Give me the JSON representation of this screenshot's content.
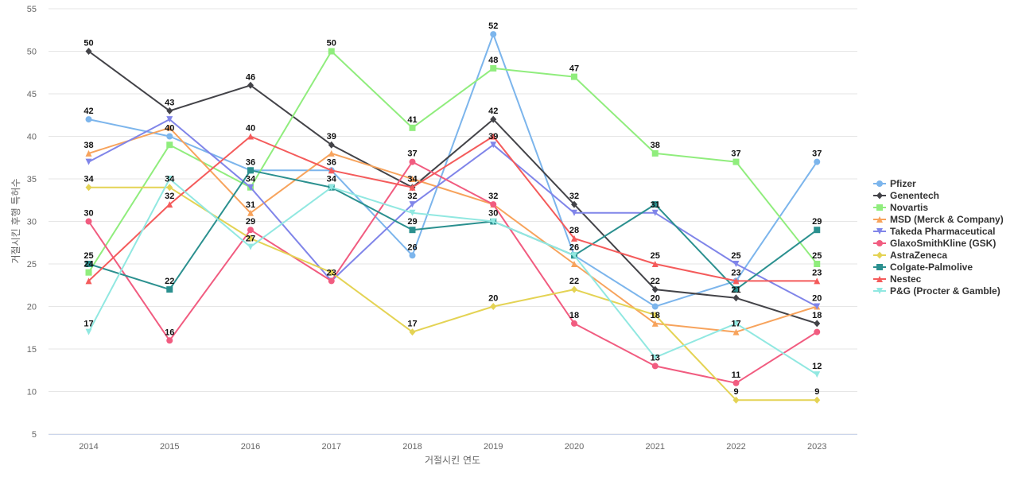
{
  "chart_data": {
    "type": "line",
    "xlabel": "거절시킨 연도",
    "ylabel": "거절시킨 후행 특허수",
    "ylim": [
      5,
      55
    ],
    "yticks": [
      5,
      10,
      15,
      20,
      25,
      30,
      35,
      40,
      45,
      50,
      55
    ],
    "categories": [
      "2014",
      "2015",
      "2016",
      "2017",
      "2018",
      "2019",
      "2020",
      "2021",
      "2022",
      "2023"
    ],
    "grid": true,
    "legend_position": "right",
    "series": [
      {
        "name": "Pfizer",
        "color": "#7cb5ec",
        "marker": "circle",
        "values": [
          42,
          40,
          36,
          36,
          26,
          52,
          26,
          20,
          23,
          37
        ]
      },
      {
        "name": "Genentech",
        "color": "#434348",
        "marker": "diamond",
        "values": [
          50,
          43,
          46,
          39,
          34,
          42,
          32,
          22,
          21,
          18
        ]
      },
      {
        "name": "Novartis",
        "color": "#90ed7d",
        "marker": "square",
        "values": [
          24,
          39,
          34,
          50,
          41,
          48,
          47,
          38,
          37,
          25
        ]
      },
      {
        "name": "MSD (Merck & Company)",
        "color": "#f7a35c",
        "marker": "triangle",
        "values": [
          38,
          41,
          31,
          38,
          35,
          32,
          25,
          18,
          17,
          20
        ]
      },
      {
        "name": "Takeda Pharmaceutical",
        "color": "#8085e9",
        "marker": "triangle-down",
        "values": [
          37,
          42,
          34,
          23,
          32,
          39,
          31,
          31,
          25,
          20
        ]
      },
      {
        "name": "GlaxoSmithKline (GSK)",
        "color": "#f15c80",
        "marker": "circle",
        "values": [
          30,
          16,
          29,
          23,
          37,
          32,
          18,
          13,
          11,
          17
        ]
      },
      {
        "name": "AstraZeneca",
        "color": "#e4d354",
        "marker": "diamond",
        "values": [
          34,
          34,
          28,
          24,
          17,
          20,
          22,
          19,
          9,
          9
        ]
      },
      {
        "name": "Colgate-Palmolive",
        "color": "#2b908f",
        "marker": "square",
        "values": [
          25,
          22,
          36,
          34,
          29,
          30,
          26,
          32,
          22,
          29
        ]
      },
      {
        "name": "Nestec",
        "color": "#f45b5b",
        "marker": "triangle",
        "values": [
          23,
          32,
          40,
          36,
          34,
          40,
          28,
          25,
          23,
          23
        ]
      },
      {
        "name": "P&G (Procter & Gamble)",
        "color": "#91e8e1",
        "marker": "triangle-down",
        "values": [
          17,
          35,
          27,
          34,
          31,
          30,
          26,
          14,
          18,
          12
        ]
      }
    ],
    "data_labels": [
      {
        "x": "2014",
        "values": [
          50,
          42,
          38,
          34,
          30,
          25,
          24,
          17
        ]
      },
      {
        "x": "2015",
        "values": [
          43,
          40,
          34,
          32,
          22,
          16
        ]
      },
      {
        "x": "2016",
        "values": [
          46,
          40,
          36,
          34,
          31,
          29,
          27
        ]
      },
      {
        "x": "2017",
        "values": [
          50,
          39,
          36,
          34,
          23
        ]
      },
      {
        "x": "2018",
        "values": [
          41,
          37,
          34,
          32,
          29,
          26,
          17
        ]
      },
      {
        "x": "2019",
        "values": [
          52,
          48,
          42,
          39,
          32,
          30,
          20
        ]
      },
      {
        "x": "2020",
        "values": [
          47,
          32,
          28,
          26,
          22,
          18
        ]
      },
      {
        "x": "2021",
        "values": [
          38,
          31,
          25,
          22,
          20,
          18,
          13
        ]
      },
      {
        "x": "2022",
        "values": [
          37,
          25,
          23,
          21,
          17,
          11,
          9
        ]
      },
      {
        "x": "2023",
        "values": [
          37,
          29,
          25,
          23,
          20,
          18,
          12,
          9
        ]
      }
    ]
  }
}
